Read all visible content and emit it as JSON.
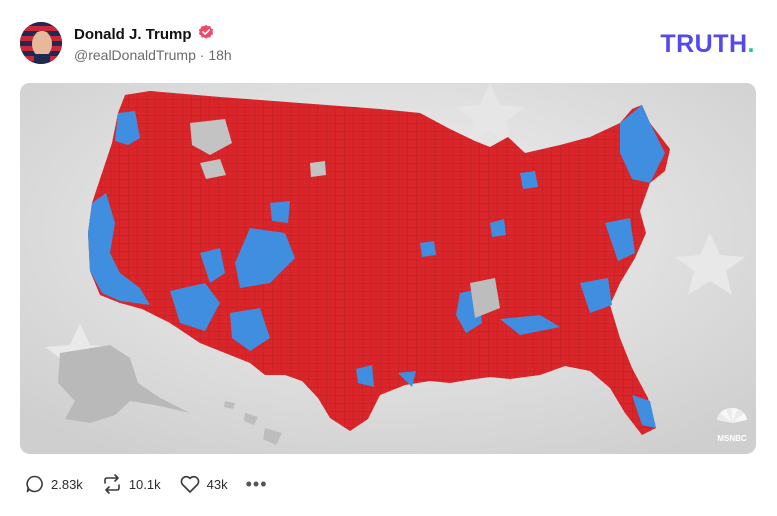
{
  "post": {
    "author_name": "Donald J. Trump",
    "handle": "@realDonaldTrump",
    "separator": "·",
    "time_ago": "18h",
    "verified_icon": "verified-badge-icon",
    "verified_color": "#f0486a"
  },
  "brand": {
    "wordmark": "TRUTH",
    "dot": ".",
    "color": "#5448ee",
    "dot_color": "#1ec9a8"
  },
  "media": {
    "watermark_text": "MSNBC",
    "map_colors": {
      "republican": "#d9262a",
      "democrat": "#3f8ee0",
      "background": "#dcdcdc"
    }
  },
  "actions": {
    "replies": "2.83k",
    "retruths": "10.1k",
    "likes": "43k",
    "more_label": "•••"
  }
}
